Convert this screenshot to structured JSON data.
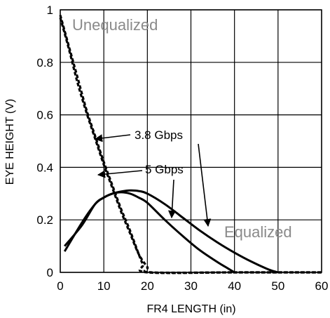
{
  "chart_data": {
    "type": "line",
    "title": "",
    "xlabel": "FR4 LENGTH (in)",
    "ylabel": "EYE HEIGHT (V)",
    "xlim": [
      0,
      60
    ],
    "ylim": [
      0,
      1
    ],
    "x_ticks": [
      0,
      10,
      20,
      30,
      40,
      50,
      60
    ],
    "y_ticks": [
      0,
      0.2,
      0.4,
      0.6,
      0.8,
      1
    ],
    "x_tick_labels": [
      "0",
      "10",
      "20",
      "30",
      "40",
      "50",
      "60"
    ],
    "y_tick_labels": [
      "0",
      "0.2",
      "0.4",
      "0.6",
      "0.8",
      "1"
    ],
    "grid": true,
    "colors": {
      "curves": "#000000",
      "grid": "#000000",
      "gray_text": "#8a8a8a"
    },
    "series": [
      {
        "group": "unequalized",
        "rate": "3.8 Gbps",
        "style": "dashed",
        "x": [
          0,
          2,
          4,
          6,
          8,
          10,
          12,
          14,
          16,
          18,
          19,
          20,
          40,
          60
        ],
        "y": [
          0.98,
          0.86,
          0.74,
          0.62,
          0.52,
          0.42,
          0.33,
          0.24,
          0.16,
          0.07,
          0.03,
          0,
          0,
          0
        ]
      },
      {
        "group": "unequalized",
        "rate": "5 Gbps",
        "style": "dashed",
        "x": [
          0,
          2,
          4,
          6,
          8,
          10,
          12,
          14,
          16,
          18,
          20,
          21,
          40,
          60
        ],
        "y": [
          0.97,
          0.85,
          0.72,
          0.61,
          0.51,
          0.41,
          0.32,
          0.23,
          0.15,
          0.07,
          0.02,
          0,
          0,
          0
        ]
      },
      {
        "group": "equalized",
        "rate": "3.8 Gbps",
        "style": "solid",
        "x": [
          1,
          5,
          8,
          10,
          12,
          14,
          16,
          18,
          20,
          24,
          28,
          32,
          36,
          40,
          44,
          48,
          50
        ],
        "y": [
          0.1,
          0.18,
          0.26,
          0.285,
          0.3,
          0.308,
          0.312,
          0.31,
          0.3,
          0.26,
          0.21,
          0.16,
          0.115,
          0.075,
          0.04,
          0.01,
          0
        ]
      },
      {
        "group": "equalized",
        "rate": "5 Gbps",
        "style": "solid",
        "x": [
          1,
          5,
          8,
          10,
          12,
          14,
          16,
          18,
          20,
          24,
          28,
          32,
          36,
          38,
          40
        ],
        "y": [
          0.08,
          0.19,
          0.26,
          0.285,
          0.3,
          0.305,
          0.3,
          0.285,
          0.265,
          0.2,
          0.14,
          0.085,
          0.04,
          0.02,
          0
        ]
      }
    ],
    "annotations": {
      "unequalized": "Unequalized",
      "equalized": "Equalized",
      "rate_38": "3.8 Gbps",
      "rate_5": "5 Gbps"
    }
  }
}
